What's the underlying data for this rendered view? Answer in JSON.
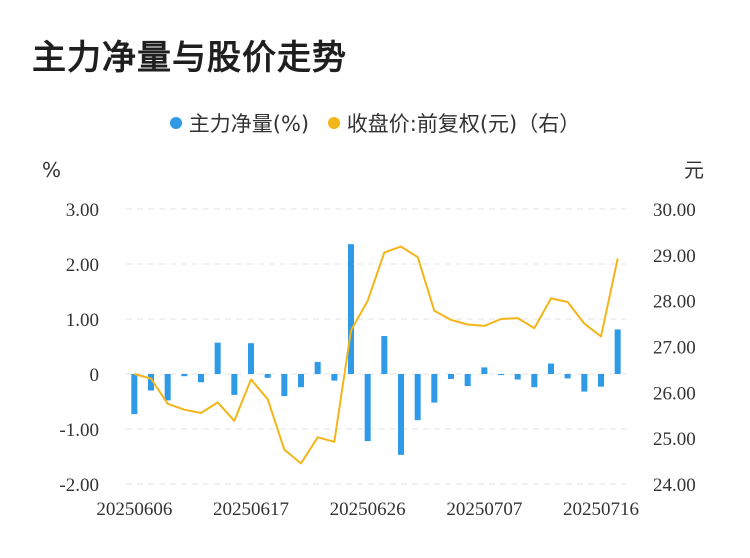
{
  "title": "主力净量与股价走势",
  "legend": [
    {
      "label": "主力净量(%)",
      "color": "#2e9ae8"
    },
    {
      "label": "收盘价:前复权(元)（右）",
      "color": "#f3b519"
    }
  ],
  "chart_data": {
    "type": "bar+line",
    "y_left_unit": "%",
    "y_right_unit": "元",
    "y_left_ticks": [
      "3.00",
      "2.00",
      "1.00",
      "0",
      "-1.00",
      "-2.00"
    ],
    "y_right_ticks": [
      "30.00",
      "29.00",
      "28.00",
      "27.00",
      "26.00",
      "25.00",
      "24.00"
    ],
    "y_left_range": [
      -2,
      3
    ],
    "y_right_range": [
      24,
      30
    ],
    "x_tick_labels": [
      "20250606",
      "20250617",
      "20250626",
      "20250707",
      "20250716"
    ],
    "x_tick_indices": [
      0,
      7,
      14,
      21,
      28
    ],
    "series": [
      {
        "name": "主力净量(%)",
        "type": "bar",
        "color": "#2e9ae8",
        "values": [
          -0.73,
          -0.3,
          -0.48,
          -0.04,
          -0.15,
          0.57,
          -0.38,
          0.56,
          -0.07,
          -0.4,
          -0.24,
          0.22,
          -0.12,
          2.36,
          -1.22,
          0.69,
          -1.47,
          -0.84,
          -0.52,
          -0.09,
          -0.22,
          0.12,
          -0.02,
          -0.1,
          -0.24,
          0.19,
          -0.08,
          -0.32,
          -0.23,
          0.81
        ]
      },
      {
        "name": "收盘价:前复权(元)（右）",
        "type": "line",
        "color": "#f3b519",
        "values": [
          26.4,
          26.3,
          25.75,
          25.62,
          25.55,
          25.78,
          25.38,
          26.28,
          25.85,
          24.75,
          24.45,
          25.02,
          24.92,
          27.35,
          28.0,
          29.05,
          29.18,
          28.95,
          27.78,
          27.58,
          27.48,
          27.45,
          27.6,
          27.62,
          27.4,
          28.05,
          27.97,
          27.5,
          27.22,
          28.92
        ]
      }
    ],
    "grid": true
  }
}
